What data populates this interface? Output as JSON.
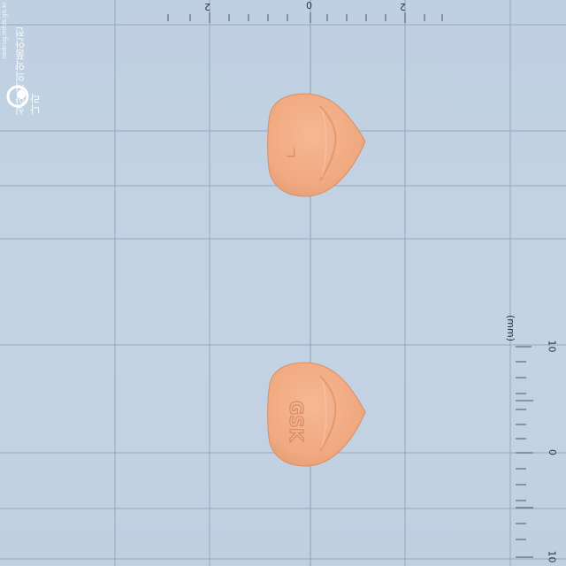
{
  "watermark": {
    "text": "식약처의약품안전나라",
    "small_text": "nedrug.mfds.go.kr",
    "logo_icon": "mfds-logo-icon"
  },
  "top_ruler": {
    "labels": [
      "2",
      "0",
      "2"
    ]
  },
  "right_ruler": {
    "unit": "(mm)",
    "labels": [
      "10",
      "0",
      "10"
    ]
  },
  "tablets": [
    {
      "side": "front",
      "imprint": "ㄱ",
      "color": "#f2ae87"
    },
    {
      "side": "back",
      "imprint": "GSK",
      "color": "#f2ae87"
    }
  ],
  "colors": {
    "background": "#c2d2e3",
    "grid": "#8ea3b8",
    "tablet": "#f2ae87"
  }
}
